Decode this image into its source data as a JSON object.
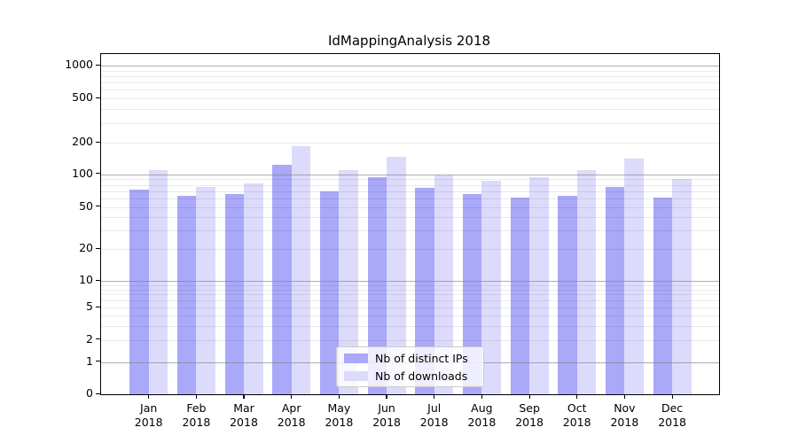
{
  "title": "IdMappingAnalysis 2018",
  "chart_data": {
    "type": "bar",
    "title": "IdMappingAnalysis 2018",
    "categories": [
      "Jan",
      "Feb",
      "Mar",
      "Apr",
      "May",
      "Jun",
      "Jul",
      "Aug",
      "Sep",
      "Oct",
      "Nov",
      "Dec"
    ],
    "category_year": "2018",
    "series": [
      {
        "name": "Nb of distinct IPs",
        "color": "#a9a8f9",
        "values": [
          72,
          64,
          66,
          123,
          70,
          94,
          75,
          66,
          61,
          63,
          76,
          61
        ]
      },
      {
        "name": "Nb of downloads",
        "color": "#dcdbfb",
        "values": [
          110,
          77,
          82,
          185,
          110,
          148,
          98,
          88,
          94,
          110,
          140,
          91
        ]
      }
    ],
    "yticks": [
      0,
      1,
      2,
      5,
      10,
      20,
      50,
      100,
      200,
      500,
      1000
    ],
    "ylim": [
      0,
      1300
    ],
    "yscale": "log-like",
    "grid": "on",
    "legend_position": "inside-bottom-center",
    "colors": {
      "bar_dark": "#a9a8f9",
      "bar_light": "#dcdbfb",
      "major_grid": "#b3b3b3",
      "minor_grid": "#e9e9e9",
      "axis": "#000000",
      "background": "#ffffff"
    }
  }
}
